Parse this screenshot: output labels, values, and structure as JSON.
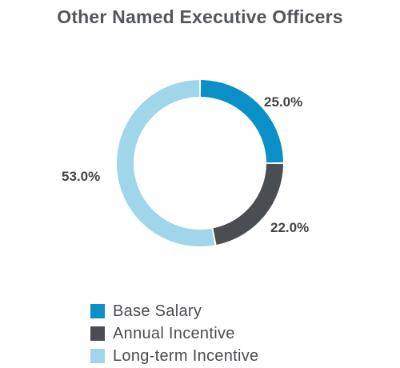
{
  "chart_data": {
    "type": "pie",
    "title": "Other Named Executive Officers",
    "categories": [
      "Base Salary",
      "Annual Incentive",
      "Long-term Incentive"
    ],
    "values": [
      25.0,
      22.0,
      53.0
    ],
    "value_labels": [
      "25.0%",
      "22.0%",
      "53.0%"
    ],
    "colors": [
      "#0a8fc7",
      "#4a4d51",
      "#9fd6ea"
    ],
    "donut": true,
    "legend_position": "bottom-left"
  }
}
